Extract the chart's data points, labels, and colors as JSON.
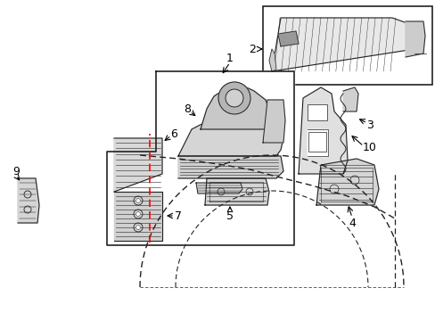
{
  "bg_color": "#ffffff",
  "line_color": "#222222",
  "label_color": "#000000",
  "fig_w": 4.89,
  "fig_h": 3.6,
  "dpi": 100
}
